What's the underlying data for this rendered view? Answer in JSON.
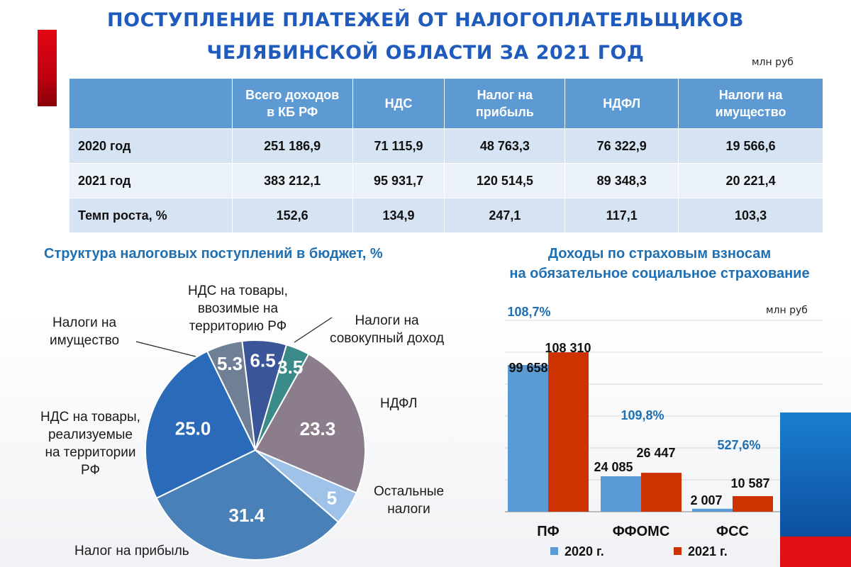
{
  "title_line1": "ПОСТУПЛЕНИЕ ПЛАТЕЖЕЙ ОТ НАЛОГОПЛАТЕЛЬЩИКОВ",
  "title_line2": "ЧЕЛЯБИНСКОЙ ОБЛАСТИ  ЗА 2021 ГОД",
  "unit": "млн руб",
  "table": {
    "headers": [
      "",
      "Всего доходов в КБ РФ",
      "НДС",
      "Налог на прибыль",
      "НДФЛ",
      "Налоги на имущество"
    ],
    "header_lines": [
      [
        "",
        ""
      ],
      [
        "Всего доходов",
        "в КБ РФ"
      ],
      [
        "НДС",
        ""
      ],
      [
        "Налог на",
        "прибыль"
      ],
      [
        "НДФЛ",
        ""
      ],
      [
        "Налоги на",
        "имущество"
      ]
    ],
    "rows": [
      [
        "2020 год",
        "251 186,9",
        "71 115,9",
        "48 763,3",
        "76 322,9",
        "19 566,6"
      ],
      [
        "2021 год",
        "383 212,1",
        "95 931,7",
        "120 514,5",
        "89 348,3",
        "20 221,4"
      ],
      [
        "Темп роста, %",
        "152,6",
        "134,9",
        "247,1",
        "117,1",
        "103,3"
      ]
    ]
  },
  "pie_title": "Структура налоговых  поступлений  в бюджет, %",
  "bar_title_line1": "Доходы по страховым взносам",
  "bar_title_line2": "на обязательное  социальное  страхование",
  "bar_unit": "млн руб",
  "pie_labels": {
    "ndfl": "НДФЛ",
    "other": [
      "Остальные",
      "налоги"
    ],
    "profit": "Налог на прибыль",
    "vat_domestic": [
      "НДС на товары,",
      "реализуемые",
      "на территории",
      "РФ"
    ],
    "property": [
      "Налоги на",
      "имущество"
    ],
    "vat_import": [
      "НДС на товары,",
      "ввозимые на",
      "территорию РФ"
    ],
    "combined": [
      "Налоги на",
      "совокупный доход"
    ]
  },
  "chart_data": [
    {
      "type": "pie",
      "title": "Структура налоговых  поступлений  в бюджет, %",
      "slices": [
        {
          "name": "Налоги на совокупный доход",
          "value": 3.5,
          "label": "3.5",
          "color": "#3a8a8a"
        },
        {
          "name": "НДФЛ",
          "value": 23.3,
          "label": "23.3",
          "color": "#8c7d8c"
        },
        {
          "name": "Остальные налоги",
          "value": 5,
          "label": "5",
          "color": "#9ec2e8"
        },
        {
          "name": "Налог на прибыль",
          "value": 31.4,
          "label": "31.4",
          "color": "#4a80b8"
        },
        {
          "name": "НДС на товары, реализуемые на территории РФ",
          "value": 25.0,
          "label": "25.0",
          "color": "#2a6ab8"
        },
        {
          "name": "Налоги на имущество",
          "value": 5.3,
          "label": "5.3",
          "color": "#6e7f96"
        },
        {
          "name": "НДС на товары, ввозимые на территорию РФ",
          "value": 6.5,
          "label": "6.5",
          "color": "#3a5598"
        }
      ]
    },
    {
      "type": "bar",
      "title": "Доходы по страховым взносам на обязательное  социальное  страхование",
      "categories": [
        "ПФ",
        "ФФОМС",
        "ФСС"
      ],
      "series": [
        {
          "name": "2020 г.",
          "values": [
            99658,
            24085,
            2007
          ],
          "labels": [
            "99 658",
            "24 085",
            "2 007"
          ],
          "color": "#5b9bd5"
        },
        {
          "name": "2021 г.",
          "values": [
            108310,
            26447,
            10587
          ],
          "labels": [
            "108 310",
            "26 447",
            "10 587"
          ],
          "color": "#cc3300"
        }
      ],
      "growth_labels": [
        "108,7%",
        "109,8%",
        "527,6%"
      ],
      "ylim": [
        0,
        130000
      ],
      "grid": true,
      "legend": "bottom"
    }
  ]
}
